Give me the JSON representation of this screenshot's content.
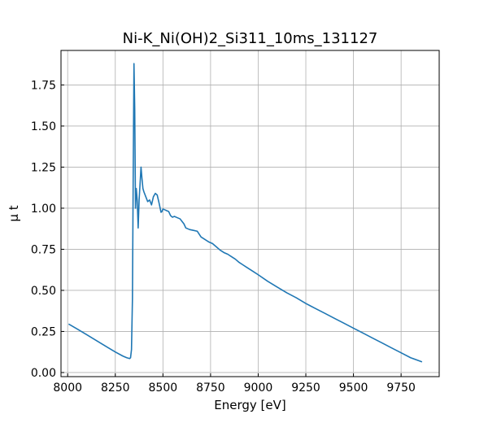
{
  "chart_data": {
    "type": "line",
    "title": "Ni-K_Ni(OH)2_Si311_10ms_131127",
    "xlabel": "Energy [eV]",
    "ylabel": "μ t",
    "xlim": [
      7965,
      9950
    ],
    "ylim": [
      -0.025,
      1.96
    ],
    "xticks": [
      8000,
      8250,
      8500,
      8750,
      9000,
      9250,
      9500,
      9750
    ],
    "xtick_labels": [
      "8000",
      "8250",
      "8500",
      "8750",
      "9000",
      "9250",
      "9500",
      "9750"
    ],
    "yticks": [
      0.0,
      0.25,
      0.5,
      0.75,
      1.0,
      1.25,
      1.5,
      1.75
    ],
    "ytick_labels": [
      "0.00",
      "0.25",
      "0.50",
      "0.75",
      "1.00",
      "1.25",
      "1.50",
      "1.75"
    ],
    "grid": true,
    "color": "#1f77b4",
    "series": [
      {
        "x": [
          8005,
          8050,
          8100,
          8150,
          8200,
          8250,
          8290,
          8310,
          8325,
          8330,
          8335,
          8340,
          8344,
          8348,
          8352,
          8356,
          8360,
          8365,
          8370,
          8375,
          8380,
          8385,
          8390,
          8395,
          8400,
          8410,
          8420,
          8430,
          8440,
          8450,
          8460,
          8470,
          8480,
          8490,
          8495,
          8500,
          8510,
          8520,
          8530,
          8540,
          8550,
          8560,
          8570,
          8580,
          8590,
          8600,
          8610,
          8620,
          8640,
          8660,
          8680,
          8700,
          8720,
          8740,
          8760,
          8780,
          8800,
          8820,
          8840,
          8860,
          8880,
          8900,
          8920,
          8940,
          8960,
          8980,
          9000,
          9050,
          9100,
          9150,
          9200,
          9250,
          9300,
          9350,
          9400,
          9450,
          9500,
          9550,
          9600,
          9650,
          9700,
          9750,
          9800,
          9860
        ],
        "y": [
          0.295,
          0.265,
          0.23,
          0.195,
          0.16,
          0.125,
          0.1,
          0.09,
          0.085,
          0.09,
          0.14,
          0.45,
          1.2,
          1.88,
          1.6,
          1.0,
          1.12,
          1.05,
          0.88,
          1.05,
          1.15,
          1.25,
          1.18,
          1.12,
          1.1,
          1.07,
          1.04,
          1.05,
          1.02,
          1.07,
          1.09,
          1.08,
          1.03,
          0.975,
          0.98,
          0.995,
          0.99,
          0.985,
          0.98,
          0.955,
          0.945,
          0.95,
          0.945,
          0.94,
          0.935,
          0.92,
          0.905,
          0.88,
          0.87,
          0.865,
          0.86,
          0.825,
          0.81,
          0.795,
          0.785,
          0.765,
          0.745,
          0.73,
          0.72,
          0.705,
          0.69,
          0.67,
          0.655,
          0.64,
          0.625,
          0.61,
          0.595,
          0.555,
          0.52,
          0.485,
          0.455,
          0.42,
          0.39,
          0.36,
          0.33,
          0.3,
          0.27,
          0.24,
          0.21,
          0.18,
          0.15,
          0.12,
          0.09,
          0.065
        ]
      }
    ]
  }
}
